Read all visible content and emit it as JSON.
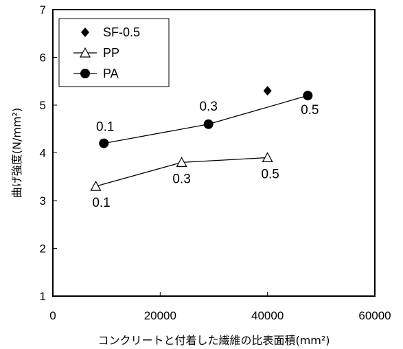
{
  "chart_data": {
    "type": "scatter",
    "xlabel": "コンクリートと付着した繊維の比表面積(mm²)",
    "ylabel": "曲げ強度(N/mm²)",
    "xlim": [
      0,
      60000
    ],
    "ylim": [
      1,
      7
    ],
    "x_ticks": [
      "0",
      "20000",
      "40000",
      "60000"
    ],
    "y_ticks": [
      "1",
      "2",
      "3",
      "4",
      "5",
      "6",
      "7"
    ],
    "grid": false,
    "legend_position": "top-left",
    "series": [
      {
        "name": "SF-0.5",
        "marker": "diamond",
        "line": false,
        "color": "#000000",
        "points": [
          {
            "x": 40000,
            "y": 5.3
          }
        ],
        "labels": []
      },
      {
        "name": "PP",
        "marker": "triangle-open",
        "line": true,
        "color": "#000000",
        "points": [
          {
            "x": 8000,
            "y": 3.3
          },
          {
            "x": 24000,
            "y": 3.8
          },
          {
            "x": 40000,
            "y": 3.9
          }
        ],
        "labels": [
          "0.1",
          "0.3",
          "0.5"
        ]
      },
      {
        "name": "PA",
        "marker": "circle",
        "line": true,
        "color": "#000000",
        "points": [
          {
            "x": 9500,
            "y": 4.2
          },
          {
            "x": 29000,
            "y": 4.6
          },
          {
            "x": 47500,
            "y": 5.2
          }
        ],
        "labels": [
          "0.1",
          "0.3",
          "0.5"
        ]
      }
    ]
  }
}
